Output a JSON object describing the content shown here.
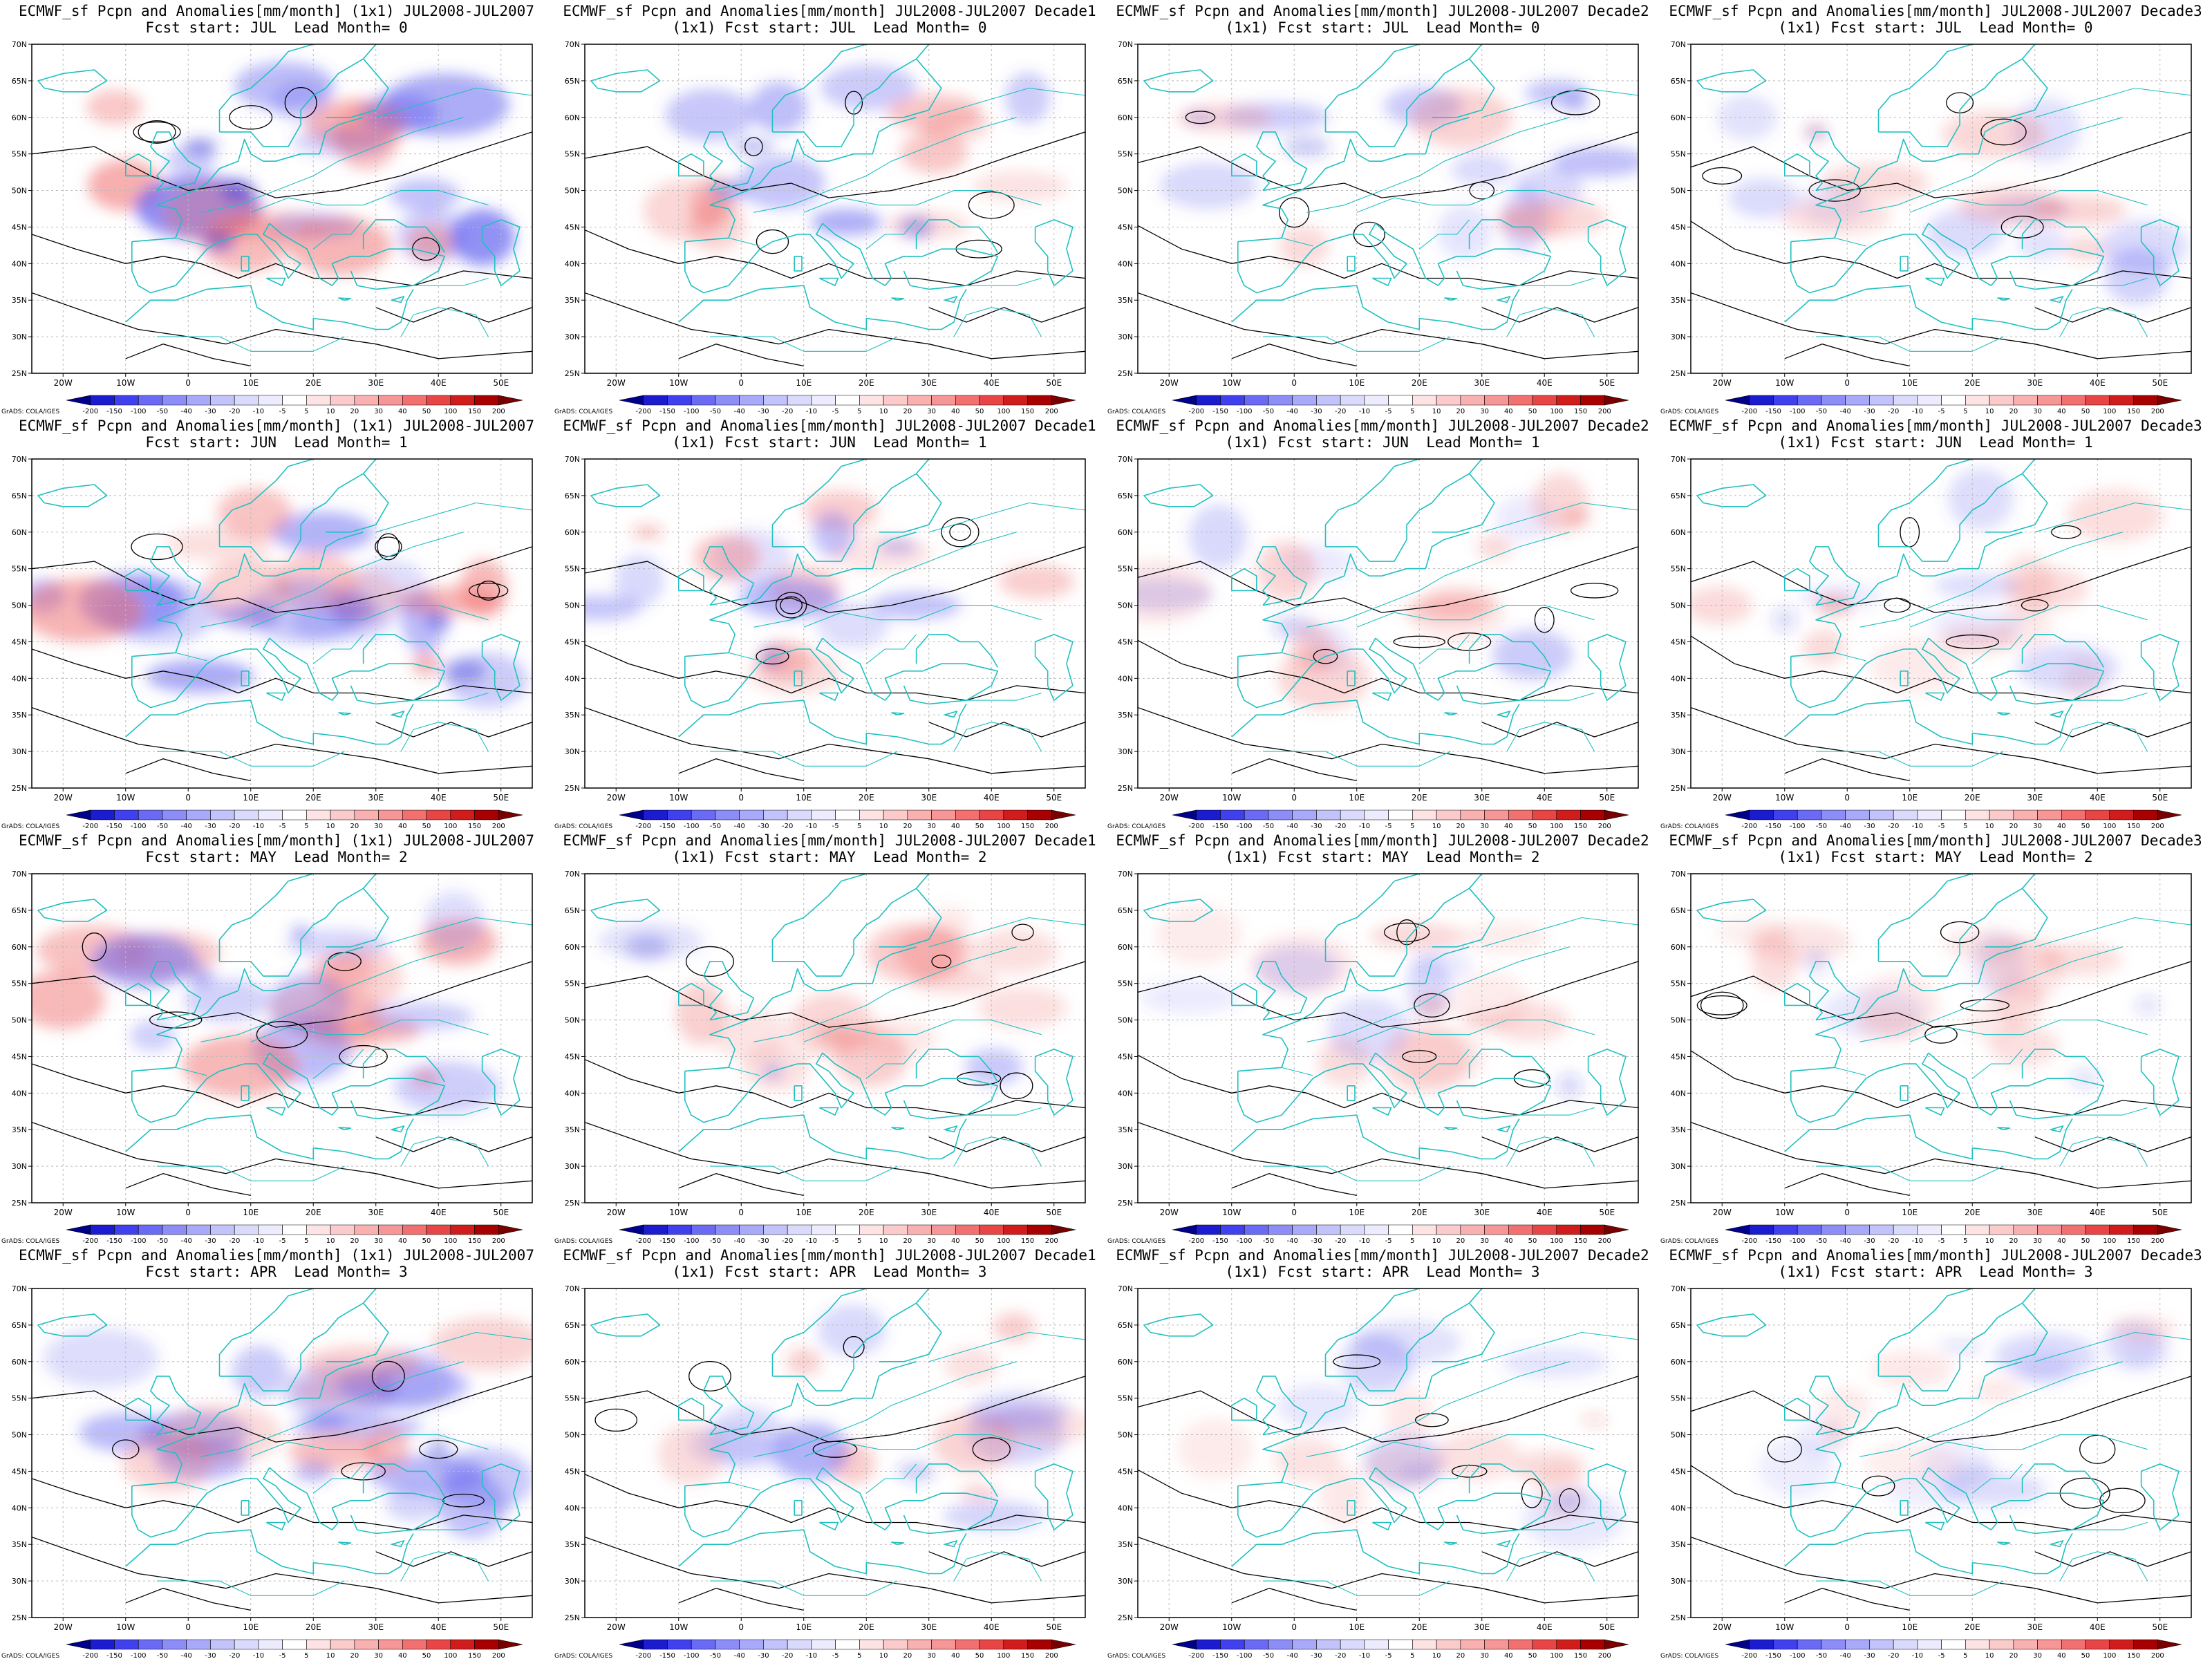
{
  "source_label": "GrADS: COLA/IGES",
  "lat_labels": [
    "70N",
    "65N",
    "60N",
    "55N",
    "50N",
    "45N",
    "40N",
    "35N",
    "30N",
    "25N"
  ],
  "lon_labels": [
    "20W",
    "10W",
    "0",
    "10E",
    "20E",
    "30E",
    "40E",
    "50E"
  ],
  "legend": {
    "values": [
      "-200",
      "-150",
      "-100",
      "-50",
      "-40",
      "-30",
      "-20",
      "-10",
      "-5",
      "5",
      "10",
      "20",
      "30",
      "40",
      "50",
      "100",
      "150",
      "200"
    ],
    "colors": [
      "#00008b",
      "#1b1bd0",
      "#4040ee",
      "#6a6af4",
      "#8d8df7",
      "#a9a9fa",
      "#c3c3fb",
      "#dadafd",
      "#ececfe",
      "#ffffff",
      "#fde3e3",
      "#fbcaca",
      "#f9b0b0",
      "#f69696",
      "#f27070",
      "#e84646",
      "#d11c1c",
      "#a80000",
      "#780000"
    ]
  },
  "colors": {
    "coast": "#20c0c0",
    "contour": "#000000",
    "grid": "#bbbbbb",
    "neg": "#5a5af0",
    "pos": "#f07070"
  },
  "panels": [
    {
      "title1": "ECMWF_sf Pcpn and Anomalies[mm/month] (1x1) JUL2008-JUL2007",
      "title2": "Fcst start: JUL  Lead Month= 0",
      "lead": 0,
      "variant": 0
    },
    {
      "title1": "ECMWF_sf Pcpn and Anomalies[mm/month] JUL2008-JUL2007 Decade1",
      "title2": "(1x1) Fcst start: JUL  Lead Month= 0",
      "lead": 0,
      "variant": 1
    },
    {
      "title1": "ECMWF_sf Pcpn and Anomalies[mm/month] JUL2008-JUL2007 Decade2",
      "title2": "(1x1) Fcst start: JUL  Lead Month= 0",
      "lead": 0,
      "variant": 2
    },
    {
      "title1": "ECMWF_sf Pcpn and Anomalies[mm/month] JUL2008-JUL2007 Decade3",
      "title2": "(1x1) Fcst start: JUL  Lead Month= 0",
      "lead": 0,
      "variant": 3
    },
    {
      "title1": "ECMWF_sf Pcpn and Anomalies[mm/month] (1x1) JUL2008-JUL2007",
      "title2": "Fcst start: JUN  Lead Month= 1",
      "lead": 1,
      "variant": 0
    },
    {
      "title1": "ECMWF_sf Pcpn and Anomalies[mm/month] JUL2008-JUL2007 Decade1",
      "title2": "(1x1) Fcst start: JUN  Lead Month= 1",
      "lead": 1,
      "variant": 1
    },
    {
      "title1": "ECMWF_sf Pcpn and Anomalies[mm/month] JUL2008-JUL2007 Decade2",
      "title2": "(1x1) Fcst start: JUN  Lead Month= 1",
      "lead": 1,
      "variant": 2
    },
    {
      "title1": "ECMWF_sf Pcpn and Anomalies[mm/month] JUL2008-JUL2007 Decade3",
      "title2": "(1x1) Fcst start: JUN  Lead Month= 1",
      "lead": 1,
      "variant": 3
    },
    {
      "title1": "ECMWF_sf Pcpn and Anomalies[mm/month] (1x1) JUL2008-JUL2007",
      "title2": "Fcst start: MAY  Lead Month= 2",
      "lead": 2,
      "variant": 0
    },
    {
      "title1": "ECMWF_sf Pcpn and Anomalies[mm/month] JUL2008-JUL2007 Decade1",
      "title2": "(1x1) Fcst start: MAY  Lead Month= 2",
      "lead": 2,
      "variant": 1
    },
    {
      "title1": "ECMWF_sf Pcpn and Anomalies[mm/month] JUL2008-JUL2007 Decade2",
      "title2": "(1x1) Fcst start: MAY  Lead Month= 2",
      "lead": 2,
      "variant": 2
    },
    {
      "title1": "ECMWF_sf Pcpn and Anomalies[mm/month] JUL2008-JUL2007 Decade3",
      "title2": "(1x1) Fcst start: MAY  Lead Month= 2",
      "lead": 2,
      "variant": 3
    },
    {
      "title1": "ECMWF_sf Pcpn and Anomalies[mm/month] (1x1) JUL2008-JUL2007",
      "title2": "Fcst start: APR  Lead Month= 3",
      "lead": 3,
      "variant": 0
    },
    {
      "title1": "ECMWF_sf Pcpn and Anomalies[mm/month] JUL2008-JUL2007 Decade1",
      "title2": "(1x1) Fcst start: APR  Lead Month= 3",
      "lead": 3,
      "variant": 1
    },
    {
      "title1": "ECMWF_sf Pcpn and Anomalies[mm/month] JUL2008-JUL2007 Decade2",
      "title2": "(1x1) Fcst start: APR  Lead Month= 3",
      "lead": 3,
      "variant": 2
    },
    {
      "title1": "ECMWF_sf Pcpn and Anomalies[mm/month] JUL2008-JUL2007 Decade3",
      "title2": "(1x1) Fcst start: APR  Lead Month= 3",
      "lead": 3,
      "variant": 3
    }
  ]
}
